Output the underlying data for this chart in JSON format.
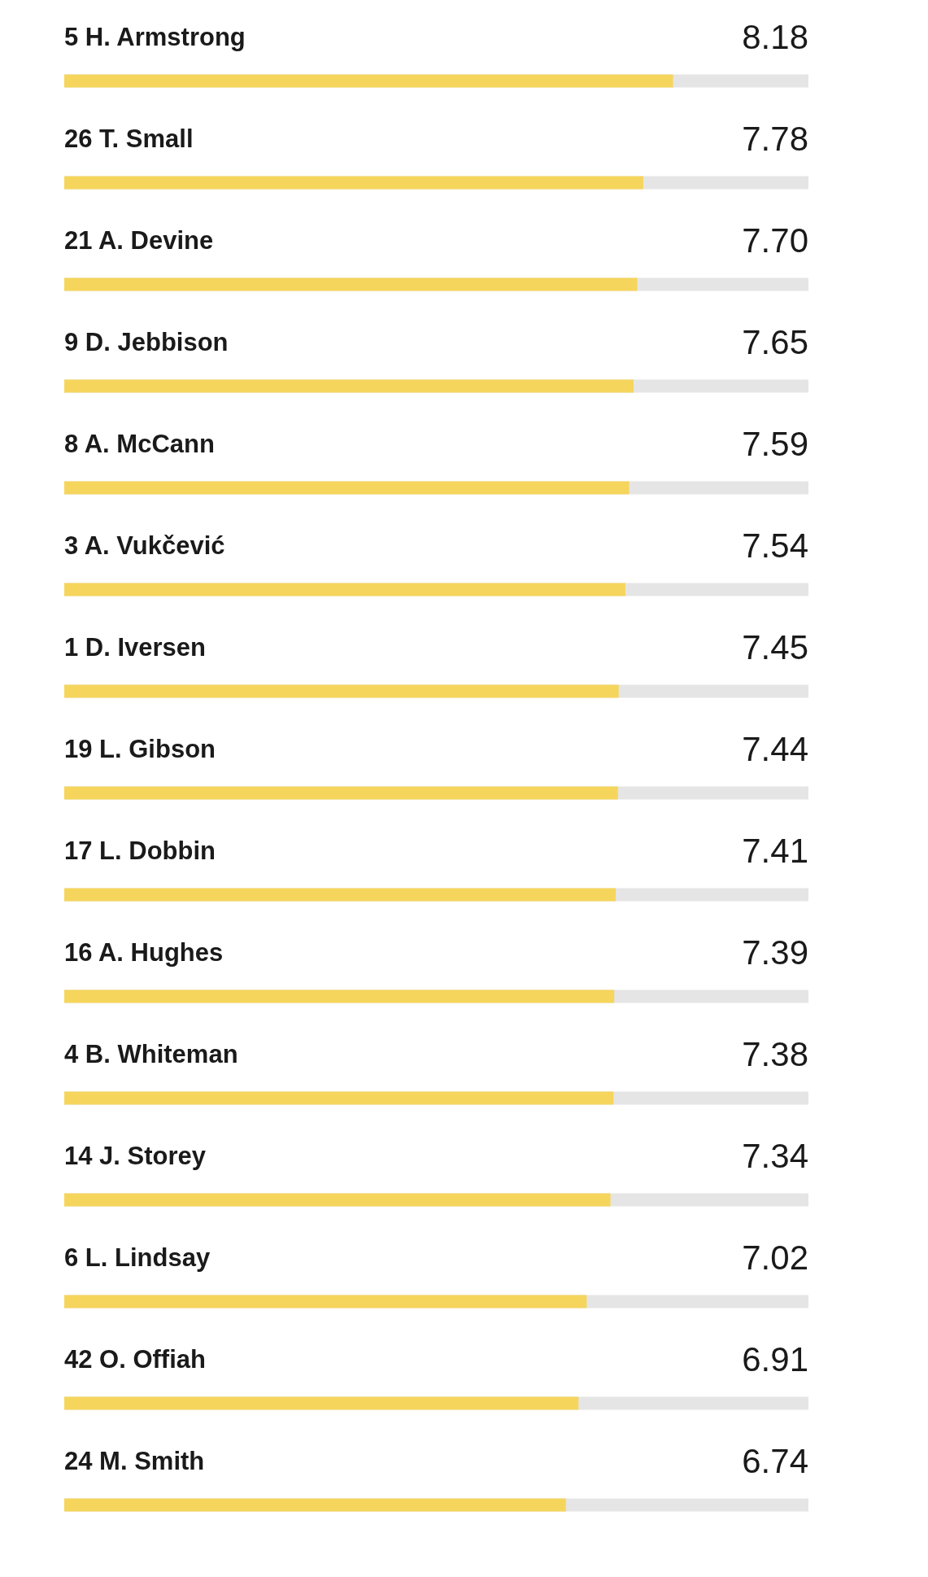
{
  "chart_data": {
    "type": "bar",
    "orientation": "horizontal",
    "categories": [
      "5 H. Armstrong",
      "26 T. Small",
      "21 A. Devine",
      "9 D. Jebbison",
      "8 A. McCann",
      "3 A. Vukčević",
      "1 D. Iversen",
      "19 L. Gibson",
      "17 L. Dobbin",
      "16 A. Hughes",
      "4 B. Whiteman",
      "14 J. Storey",
      "6 L. Lindsay",
      "42 O. Offiah",
      "24 M. Smith"
    ],
    "values": [
      8.18,
      7.78,
      7.7,
      7.65,
      7.59,
      7.54,
      7.45,
      7.44,
      7.41,
      7.39,
      7.38,
      7.34,
      7.02,
      6.91,
      6.74
    ],
    "value_labels": [
      "8.18",
      "7.78",
      "7.70",
      "7.65",
      "7.59",
      "7.54",
      "7.45",
      "7.44",
      "7.41",
      "7.39",
      "7.38",
      "7.34",
      "7.02",
      "6.91",
      "6.74"
    ],
    "color": "#f5d55c",
    "xlim": [
      0,
      10
    ],
    "tick_labels": false
  }
}
